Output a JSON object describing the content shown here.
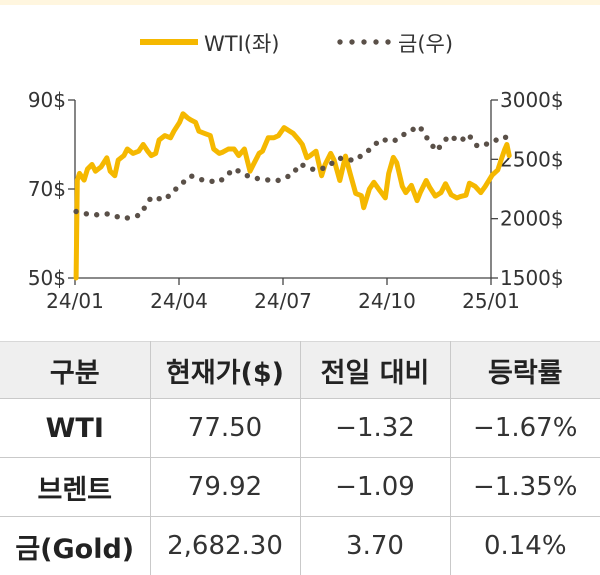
{
  "chart_data": {
    "type": "line",
    "legend": {
      "placement": "top-center",
      "entries": [
        "WTI(좌)",
        "금(우)"
      ]
    },
    "x_ticks": [
      "24/01",
      "24/04",
      "24/07",
      "24/10",
      "25/01"
    ],
    "y_left": {
      "ticks": [
        "50$",
        "70$",
        "90$"
      ],
      "range": [
        50,
        90
      ]
    },
    "y_right": {
      "ticks": [
        "1500$",
        "2000$",
        "2500$",
        "3000$"
      ],
      "range": [
        1500,
        3000
      ]
    },
    "series": [
      {
        "name": "WTI(좌)",
        "axis": "left",
        "style": "solid",
        "color": "#f5b800",
        "points": [
          [
            "2024-01-02",
            50
          ],
          [
            "2024-01-03",
            72
          ],
          [
            "2024-01-05",
            73.5
          ],
          [
            "2024-01-09",
            72
          ],
          [
            "2024-01-12",
            74.5
          ],
          [
            "2024-01-16",
            75.5
          ],
          [
            "2024-01-19",
            74
          ],
          [
            "2024-01-24",
            75
          ],
          [
            "2024-01-29",
            77
          ],
          [
            "2024-02-01",
            74
          ],
          [
            "2024-02-05",
            73
          ],
          [
            "2024-02-08",
            76.5
          ],
          [
            "2024-02-13",
            77.5
          ],
          [
            "2024-02-16",
            79
          ],
          [
            "2024-02-21",
            78
          ],
          [
            "2024-02-26",
            78.5
          ],
          [
            "2024-03-01",
            80
          ],
          [
            "2024-03-05",
            78.5
          ],
          [
            "2024-03-08",
            77.5
          ],
          [
            "2024-03-12",
            78
          ],
          [
            "2024-03-15",
            81
          ],
          [
            "2024-03-20",
            82
          ],
          [
            "2024-03-25",
            81.5
          ],
          [
            "2024-03-28",
            83
          ],
          [
            "2024-04-02",
            85
          ],
          [
            "2024-04-05",
            86.9
          ],
          [
            "2024-04-09",
            86
          ],
          [
            "2024-04-12",
            85.5
          ],
          [
            "2024-04-16",
            85
          ],
          [
            "2024-04-19",
            83
          ],
          [
            "2024-04-24",
            82.5
          ],
          [
            "2024-04-29",
            82
          ],
          [
            "2024-05-02",
            79
          ],
          [
            "2024-05-07",
            78
          ],
          [
            "2024-05-10",
            78.3
          ],
          [
            "2024-05-15",
            79
          ],
          [
            "2024-05-20",
            79
          ],
          [
            "2024-05-24",
            77.5
          ],
          [
            "2024-05-29",
            79
          ],
          [
            "2024-06-03",
            74
          ],
          [
            "2024-06-06",
            75.5
          ],
          [
            "2024-06-11",
            78
          ],
          [
            "2024-06-14",
            78.5
          ],
          [
            "2024-06-19",
            81.5
          ],
          [
            "2024-06-24",
            81.5
          ],
          [
            "2024-06-28",
            82
          ],
          [
            "2024-07-03",
            83.8
          ],
          [
            "2024-07-08",
            83
          ],
          [
            "2024-07-11",
            82.5
          ],
          [
            "2024-07-16",
            81
          ],
          [
            "2024-07-19",
            80
          ],
          [
            "2024-07-23",
            77
          ],
          [
            "2024-07-26",
            77.5
          ],
          [
            "2024-07-31",
            78.5
          ],
          [
            "2024-08-05",
            73
          ],
          [
            "2024-08-08",
            75.5
          ],
          [
            "2024-08-13",
            78
          ],
          [
            "2024-08-16",
            76.5
          ],
          [
            "2024-08-21",
            71.9
          ],
          [
            "2024-08-26",
            77.4
          ],
          [
            "2024-08-30",
            73.5
          ],
          [
            "2024-09-04",
            69
          ],
          [
            "2024-09-09",
            68.5
          ],
          [
            "2024-09-11",
            65.8
          ],
          [
            "2024-09-16",
            70
          ],
          [
            "2024-09-20",
            71.5
          ],
          [
            "2024-09-25",
            69.7
          ],
          [
            "2024-09-30",
            68
          ],
          [
            "2024-10-03",
            73.5
          ],
          [
            "2024-10-07",
            77.1
          ],
          [
            "2024-10-10",
            75.9
          ],
          [
            "2024-10-15",
            70.6
          ],
          [
            "2024-10-18",
            69.2
          ],
          [
            "2024-10-23",
            70.8
          ],
          [
            "2024-10-28",
            67.4
          ],
          [
            "2024-10-31",
            69.3
          ],
          [
            "2024-11-05",
            71.9
          ],
          [
            "2024-11-08",
            70.4
          ],
          [
            "2024-11-13",
            68.4
          ],
          [
            "2024-11-18",
            69.2
          ],
          [
            "2024-11-22",
            71.2
          ],
          [
            "2024-11-27",
            68.7
          ],
          [
            "2024-12-02",
            68
          ],
          [
            "2024-12-05",
            68.3
          ],
          [
            "2024-12-10",
            68.6
          ],
          [
            "2024-12-13",
            71.3
          ],
          [
            "2024-12-18",
            70.6
          ],
          [
            "2024-12-23",
            69.2
          ],
          [
            "2024-12-27",
            70.6
          ],
          [
            "2025-01-02",
            73.1
          ],
          [
            "2025-01-07",
            74.3
          ],
          [
            "2025-01-10",
            76.6
          ],
          [
            "2025-01-13",
            78.8
          ],
          [
            "2025-01-15",
            80
          ],
          [
            "2025-01-17",
            77.5
          ]
        ]
      },
      {
        "name": "금(우)",
        "axis": "right",
        "style": "dotted",
        "color": "#5a5048",
        "points": [
          [
            "2024-01-02",
            2060
          ],
          [
            "2024-01-16",
            2030
          ],
          [
            "2024-01-30",
            2040
          ],
          [
            "2024-02-13",
            2000
          ],
          [
            "2024-02-27",
            2030
          ],
          [
            "2024-03-08",
            2180
          ],
          [
            "2024-03-20",
            2160
          ],
          [
            "2024-04-02",
            2280
          ],
          [
            "2024-04-12",
            2360
          ],
          [
            "2024-04-24",
            2320
          ],
          [
            "2024-05-07",
            2310
          ],
          [
            "2024-05-20",
            2420
          ],
          [
            "2024-06-03",
            2350
          ],
          [
            "2024-06-14",
            2330
          ],
          [
            "2024-06-27",
            2320
          ],
          [
            "2024-07-10",
            2370
          ],
          [
            "2024-07-17",
            2460
          ],
          [
            "2024-07-30",
            2410
          ],
          [
            "2024-08-09",
            2430
          ],
          [
            "2024-08-20",
            2510
          ],
          [
            "2024-09-03",
            2490
          ],
          [
            "2024-09-16",
            2580
          ],
          [
            "2024-09-26",
            2670
          ],
          [
            "2024-10-07",
            2650
          ],
          [
            "2024-10-18",
            2720
          ],
          [
            "2024-10-30",
            2780
          ],
          [
            "2024-11-07",
            2660
          ],
          [
            "2024-11-14",
            2570
          ],
          [
            "2024-11-25",
            2700
          ],
          [
            "2024-12-05",
            2650
          ],
          [
            "2024-12-12",
            2710
          ],
          [
            "2024-12-20",
            2610
          ],
          [
            "2025-01-02",
            2640
          ],
          [
            "2025-01-10",
            2690
          ],
          [
            "2025-01-17",
            2682.3
          ]
        ]
      }
    ]
  },
  "table": {
    "headers": [
      "구분",
      "현재가($)",
      "전일 대비",
      "등락률"
    ],
    "rows": [
      [
        "WTI",
        "77.50",
        "−1.32",
        "−1.67%"
      ],
      [
        "브렌트",
        "79.92",
        "−1.09",
        "−1.35%"
      ],
      [
        "금(Gold)",
        "2,682.30",
        "3.70",
        "0.14%"
      ]
    ]
  }
}
